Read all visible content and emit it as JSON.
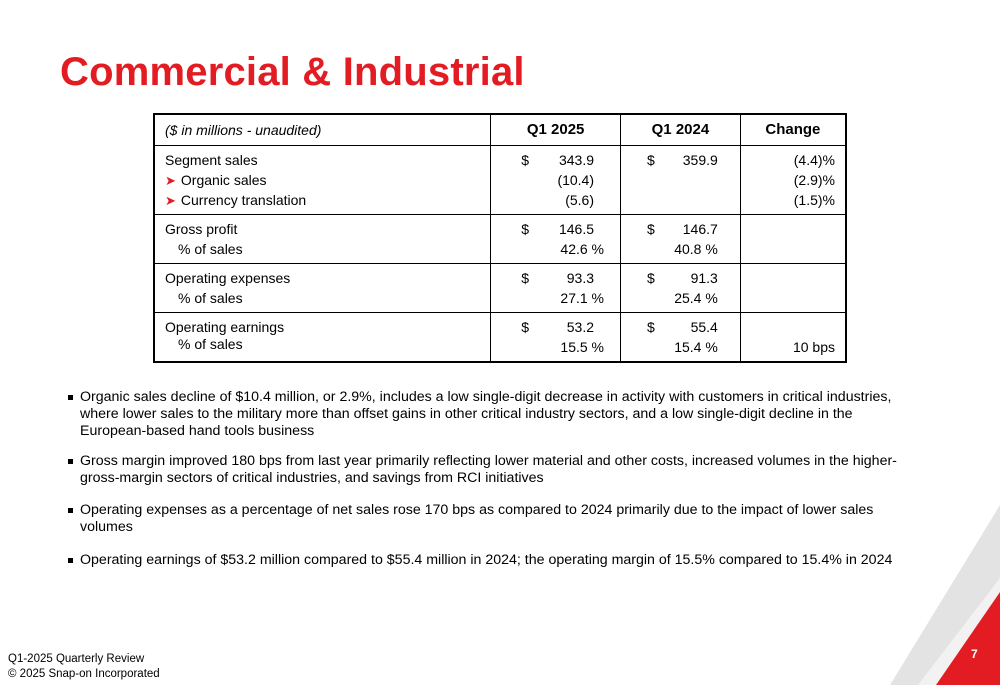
{
  "title": "Commercial & Industrial",
  "table": {
    "headers": {
      "label": "($ in millions - unaudited)",
      "q1_2025": "Q1 2025",
      "q1_2024": "Q1 2024",
      "change": "Change"
    },
    "segment_sales": {
      "label": "Segment sales",
      "q1_2025_dollar": "$",
      "q1_2025": "343.9",
      "q1_2024_dollar": "$",
      "q1_2024": "359.9",
      "change": "(4.4)%",
      "organic_label": "Organic sales",
      "organic_q1_2025": "(10.4)",
      "organic_change": "(2.9)%",
      "currency_label": "Currency translation",
      "currency_q1_2025": "(5.6)",
      "currency_change": "(1.5)%"
    },
    "gross_profit": {
      "label": "Gross profit",
      "pct_label": "% of sales",
      "q1_2025_dollar": "$",
      "q1_2025": "146.5",
      "q1_2025_pct": "42.6 %",
      "q1_2024_dollar": "$",
      "q1_2024": "146.7",
      "q1_2024_pct": "40.8 %"
    },
    "operating_expenses": {
      "label": "Operating expenses",
      "pct_label": "% of sales",
      "q1_2025_dollar": "$",
      "q1_2025": "93.3",
      "q1_2025_pct": "27.1 %",
      "q1_2024_dollar": "$",
      "q1_2024": "91.3",
      "q1_2024_pct": "25.4 %"
    },
    "operating_earnings": {
      "label": "Operating earnings",
      "pct_label": "% of sales",
      "q1_2025_dollar": "$",
      "q1_2025": "53.2",
      "q1_2025_pct": "15.5 %",
      "q1_2024_dollar": "$",
      "q1_2024": "55.4",
      "q1_2024_pct": "15.4 %",
      "change": "10 bps"
    }
  },
  "bullets": [
    "Organic sales decline of $10.4 million, or 2.9%, includes a low single-digit decrease in activity with customers in critical industries, where lower sales to the military more than offset gains in other critical industry sectors, and a low single-digit decline in the European-based hand tools business",
    "Gross margin improved 180 bps from last year primarily reflecting lower material and other costs, increased volumes in the higher-gross-margin sectors of critical industries, and savings from RCI initiatives",
    "Operating expenses as a percentage of net sales rose 170 bps as compared to 2024 primarily due to the impact of lower sales volumes",
    "Operating earnings of $53.2 million compared to $55.4 million in 2024; the operating margin of 15.5% compared to 15.4% in 2024"
  ],
  "footer": {
    "line1": "Q1-2025 Quarterly Review",
    "line2": "© 2025 Snap-on Incorporated"
  },
  "page_number": "7",
  "colors": {
    "accent": "#e31c23",
    "corner_light": "#d9d9d9"
  },
  "icons": {
    "bullet": "square-bullet-icon",
    "sub_item": "arrowhead-icon"
  }
}
